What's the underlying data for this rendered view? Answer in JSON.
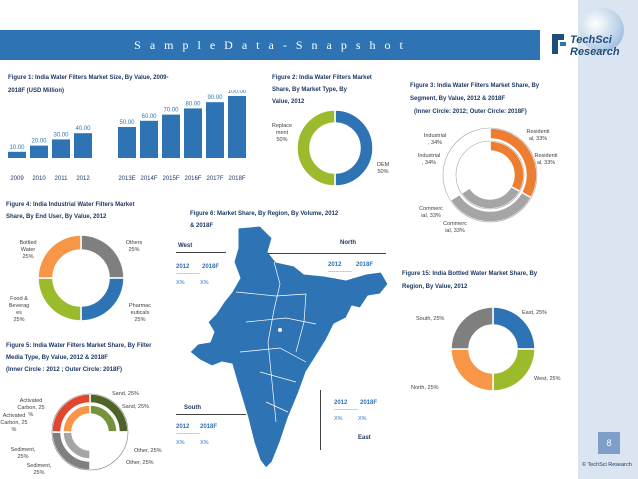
{
  "header": {
    "title": "S a m p l e   D a t a   -   S n a p s h o t"
  },
  "brand": {
    "logo_line1": "TechSci",
    "logo_line2": "Research",
    "copyright": "© TechSci Research"
  },
  "page_number": "8",
  "regions": {
    "west": "West",
    "north": "North",
    "south": "South",
    "east": "East",
    "year_2012": "2012",
    "year_2018": "2018F",
    "dashes": "-------------",
    "pct": "X%"
  },
  "chart_data": [
    {
      "id": "fig1",
      "type": "bar",
      "title_line1": "Figure 1: India Water Filters Market Size, By Value, 2009-",
      "title_line2": "2018F (USD Million)",
      "categories": [
        "2009",
        "2010",
        "2011",
        "2012",
        "2013E",
        "2014F",
        "2015F",
        "2016F",
        "2017F",
        "2018F"
      ],
      "values": [
        10,
        20,
        30,
        40,
        50,
        60,
        70,
        80,
        90,
        100
      ],
      "value_labels": [
        "10.00",
        "20.00",
        "30.00",
        "40.00",
        "50.00",
        "60.00",
        "70.00",
        "80.00",
        "90.00",
        "100.00"
      ],
      "ylim": [
        0,
        100
      ],
      "color": "#2e74b5"
    },
    {
      "id": "fig2",
      "type": "pie",
      "title_line1": "Figure 2: India Water Filters Market",
      "title_line2": "Share, By Market Type, By",
      "title_line3": "Value, 2012",
      "slices": [
        {
          "name": "OEM",
          "value": 50,
          "label_a": "OEM",
          "label_b": "50%",
          "color": "#2e74b5"
        },
        {
          "name": "Replacement",
          "value": 50,
          "label_a": "Replace",
          "label_b": "ment",
          "label_c": "50%",
          "color": "#9bbb2c"
        }
      ]
    },
    {
      "id": "fig3",
      "type": "pie",
      "title_line1": "Figure 3: India Water Filters Market Share, By",
      "title_line2": "Segment, By Value, 2012 & 2018F",
      "title_line3": "(Inner Circle: 2012; Outer Circle: 2018F)",
      "slices": [
        {
          "name": "Residential",
          "value": 33,
          "color": "#ed7d31"
        },
        {
          "name": "Commercial",
          "value": 33,
          "color": "#a5a5a5"
        },
        {
          "name": "Industrial",
          "value": 34,
          "color": "#ffffff"
        }
      ],
      "labels": {
        "res_outer_a": "Residenti",
        "res_outer_b": "al, 33%",
        "res_inner_a": "Residenti",
        "res_inner_b": "al, 33%",
        "ind_outer_a": "Industrial",
        "ind_outer_b": ", 34%",
        "ind_inner_a": "Industrial",
        "ind_inner_b": ", 34%",
        "com_a_1": "Commerc",
        "com_a_2": "ial, 33%",
        "com_b_1": "Commerc",
        "com_b_2": "ial, 33%"
      }
    },
    {
      "id": "fig4",
      "type": "pie",
      "title_line1": "Figure 4: India Industrial Water Filters Market",
      "title_line2": "Share, By End User, By Value, 2012",
      "slices": [
        {
          "name": "Others",
          "value": 25,
          "color": "#7f7f7f"
        },
        {
          "name": "Pharmaceuticals",
          "value": 25,
          "color": "#2e74b5"
        },
        {
          "name": "Food & Beverages",
          "value": 25,
          "color": "#9bbb2c"
        },
        {
          "name": "Bottled Water",
          "value": 25,
          "color": "#f79646"
        }
      ],
      "labels": {
        "bottled_1": "Bottled",
        "bottled_2": "Water",
        "bottled_3": "25%",
        "others_1": "Others",
        "others_2": "25%",
        "pharma_1": "Pharmac",
        "pharma_2": "euticals",
        "pharma_3": "25%",
        "food_1": "Food &",
        "food_2": "Beverag",
        "food_3": "es",
        "food_4": "25%"
      }
    },
    {
      "id": "fig5",
      "type": "pie",
      "title_line1": "Figure 5: India Water Filters Market Share, By Filter",
      "title_line2": "Media Type, By Value, 2012 & 2018F",
      "title_line3": "(Inner Circle : 2012 ; Outer Circle: 2018F)",
      "slices": [
        {
          "name": "Sand",
          "value": 25,
          "color_outer": "#4f6228",
          "color_inner": "#76923c"
        },
        {
          "name": "Other",
          "value": 25,
          "color_outer": "#ffffff",
          "color_inner": "#ffffff"
        },
        {
          "name": "Sediment",
          "value": 25,
          "color_outer": "#7f7f7f",
          "color_inner": "#a5a5a5"
        },
        {
          "name": "Activated Carbon",
          "value": 25,
          "color_outer": "#e0452d",
          "color_inner": "#f79646"
        }
      ],
      "labels": {
        "sand_a": "Sand, 25%",
        "sand_b": "Sand, 25%",
        "other_a": "Other, 25%",
        "other_b": "Other, 25%",
        "sed_a_1": "Sediment,",
        "sed_a_2": "25%",
        "sed_b_1": "Sediment,",
        "sed_b_2": "25%",
        "ac_a_1": "Activated",
        "ac_a_2": "Carbon, 25",
        "ac_a_3": "%",
        "ac_b_1": "Activated",
        "ac_b_2": "Carbon, 25",
        "ac_b_3": "%"
      }
    },
    {
      "id": "fig6",
      "type": "map",
      "title_line1": "Figure 6: Market Share, By Region, By Volume, 2012",
      "title_line2": "& 2018F"
    },
    {
      "id": "fig15",
      "type": "pie",
      "title_line1": "Figure 15: India Bottled Water Market Share, By",
      "title_line2": "Region, By Value, 2012",
      "slices": [
        {
          "name": "East",
          "value": 25,
          "label": "East, 25%",
          "color": "#2e74b5"
        },
        {
          "name": "West",
          "value": 25,
          "label": "West, 25%",
          "color": "#9bbb2c"
        },
        {
          "name": "North",
          "value": 25,
          "label": "North, 25%",
          "color": "#f79646"
        },
        {
          "name": "South",
          "value": 25,
          "label": "South, 25%",
          "color": "#7f7f7f"
        }
      ]
    }
  ]
}
